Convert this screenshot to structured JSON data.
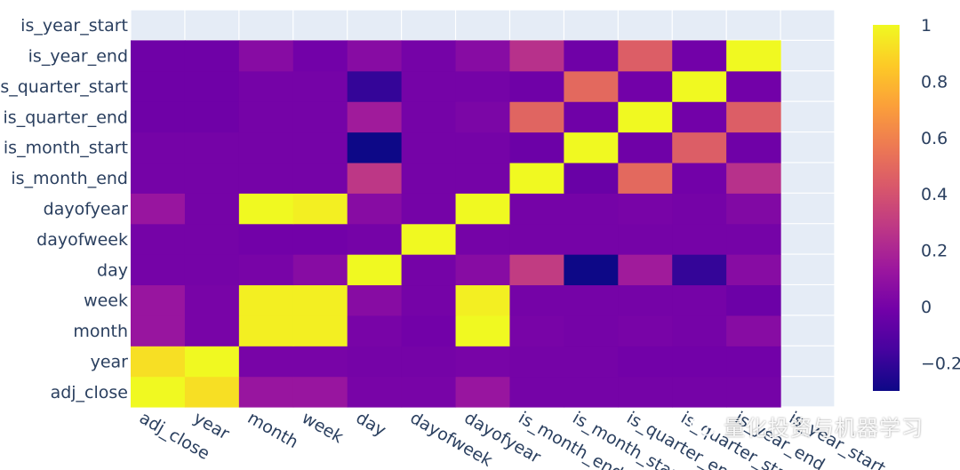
{
  "chart_data": {
    "type": "heatmap",
    "x": [
      "adj_close",
      "year",
      "month",
      "week",
      "day",
      "dayofweek",
      "dayofyear",
      "is_month_end",
      "is_month_start",
      "is_quarter_end",
      "is_quarter_start",
      "is_year_end",
      "is_year_start"
    ],
    "y": [
      "adj_close",
      "year",
      "month",
      "week",
      "day",
      "dayofweek",
      "dayofyear",
      "is_month_end",
      "is_month_start",
      "is_quarter_end",
      "is_quarter_start",
      "is_year_end",
      "is_year_start"
    ],
    "z": [
      [
        1.0,
        0.92,
        0.12,
        0.12,
        0.01,
        0.01,
        0.12,
        0.0,
        0.0,
        0.0,
        0.0,
        0.0,
        null
      ],
      [
        0.92,
        1.0,
        0.01,
        0.01,
        0.0,
        0.0,
        0.01,
        0.0,
        0.0,
        -0.01,
        -0.01,
        -0.01,
        null
      ],
      [
        0.12,
        0.01,
        0.97,
        0.97,
        0.01,
        -0.01,
        1.0,
        0.01,
        0.0,
        0.01,
        0.0,
        0.06,
        null
      ],
      [
        0.12,
        0.01,
        0.97,
        0.97,
        0.06,
        0.0,
        0.97,
        0.0,
        0.0,
        0.0,
        0.0,
        -0.03,
        null
      ],
      [
        0.0,
        0.0,
        0.01,
        0.06,
        1.0,
        0.0,
        0.06,
        0.3,
        -0.3,
        0.15,
        -0.2,
        0.06,
        null
      ],
      [
        0.0,
        0.0,
        -0.01,
        -0.01,
        0.0,
        1.0,
        0.0,
        0.0,
        0.0,
        0.0,
        0.0,
        0.0,
        null
      ],
      [
        0.12,
        0.0,
        1.0,
        0.97,
        0.06,
        0.0,
        1.0,
        0.0,
        0.0,
        0.01,
        0.0,
        0.04,
        null
      ],
      [
        0.0,
        0.0,
        0.0,
        0.0,
        0.28,
        0.0,
        0.0,
        1.0,
        -0.04,
        0.5,
        -0.01,
        0.25,
        null
      ],
      [
        0.0,
        0.0,
        0.0,
        0.0,
        -0.3,
        0.0,
        0.0,
        -0.03,
        1.0,
        -0.02,
        0.45,
        -0.02,
        null
      ],
      [
        -0.02,
        -0.02,
        0.0,
        0.0,
        0.15,
        0.0,
        0.02,
        0.48,
        -0.02,
        1.0,
        -0.01,
        0.45,
        null
      ],
      [
        -0.02,
        -0.02,
        0.0,
        0.0,
        -0.2,
        0.0,
        0.0,
        -0.02,
        0.5,
        -0.01,
        1.0,
        -0.01,
        null
      ],
      [
        -0.02,
        -0.02,
        0.06,
        -0.01,
        0.06,
        0.0,
        0.06,
        0.25,
        -0.02,
        0.45,
        -0.01,
        1.0,
        null
      ],
      [
        null,
        null,
        null,
        null,
        null,
        null,
        null,
        null,
        null,
        null,
        null,
        null,
        null
      ]
    ],
    "zmin": -0.3,
    "zmax": 1,
    "colorscale": "plasma",
    "colorbar_ticks": [
      "1",
      "0.8",
      "0.6",
      "0.4",
      "0.2",
      "0",
      "−0.2"
    ],
    "colorbar_tick_values": [
      1,
      0.8,
      0.6,
      0.4,
      0.2,
      0,
      -0.2
    ],
    "plot_background": "#e5ecf6",
    "colorscale_stops": [
      "#0d0887",
      "#46039f",
      "#7201a8",
      "#9c179e",
      "#bd3786",
      "#d8576b",
      "#ed7953",
      "#fb9f3a",
      "#fdca26",
      "#f0f921"
    ],
    "grid": true,
    "xtick_angle": 30
  },
  "watermark": {
    "text": "量化投资与机器学习",
    "icon": "wechat-icon"
  }
}
